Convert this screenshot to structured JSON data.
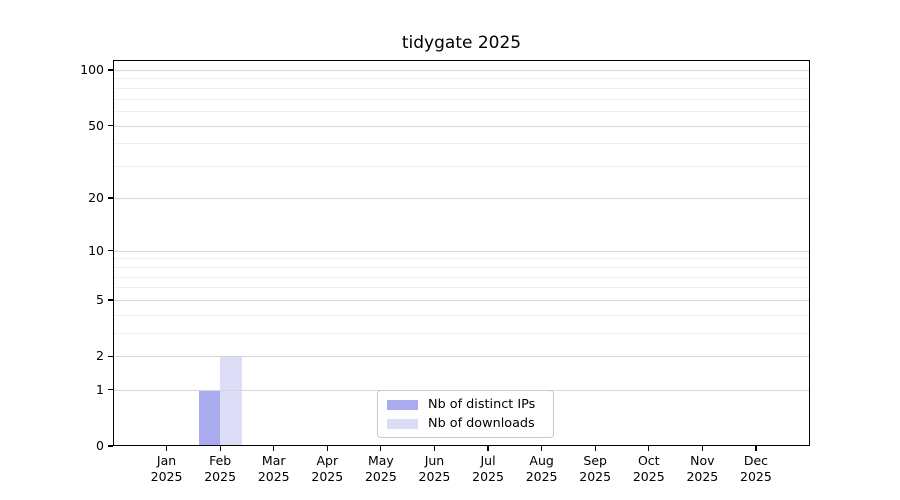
{
  "figure": {
    "background": "#ffffff"
  },
  "chart_data": {
    "type": "bar",
    "title": "tidygate 2025",
    "categories": [
      "Jan",
      "Feb",
      "Mar",
      "Apr",
      "May",
      "Jun",
      "Jul",
      "Aug",
      "Sep",
      "Oct",
      "Nov",
      "Dec"
    ],
    "x_year_label": "2025",
    "series": [
      {
        "name": "Nb of distinct IPs",
        "color": "#aaaaee",
        "values": [
          0,
          1,
          0,
          0,
          0,
          0,
          0,
          0,
          0,
          0,
          0,
          0
        ]
      },
      {
        "name": "Nb of downloads",
        "color": "#ddddf8",
        "values": [
          0,
          2,
          0,
          0,
          0,
          0,
          0,
          0,
          0,
          0,
          0,
          0
        ]
      }
    ],
    "y_axis": {
      "scale": "log1p",
      "major_ticks": [
        0,
        1,
        2,
        5,
        10,
        20,
        50,
        100
      ],
      "minor_ticks": [
        3,
        4,
        6,
        7,
        8,
        9,
        30,
        40,
        60,
        70,
        80,
        90
      ],
      "ylim": [
        0,
        100
      ]
    },
    "grid": {
      "orientation": "horizontal",
      "major_color": "#d6d6d6",
      "minor_color": "#eeeeee"
    },
    "axis_color": "#000000",
    "legend": {
      "position": "inside-bottom-center",
      "border_color": "#c9c9c9",
      "background": "#ffffff"
    }
  }
}
